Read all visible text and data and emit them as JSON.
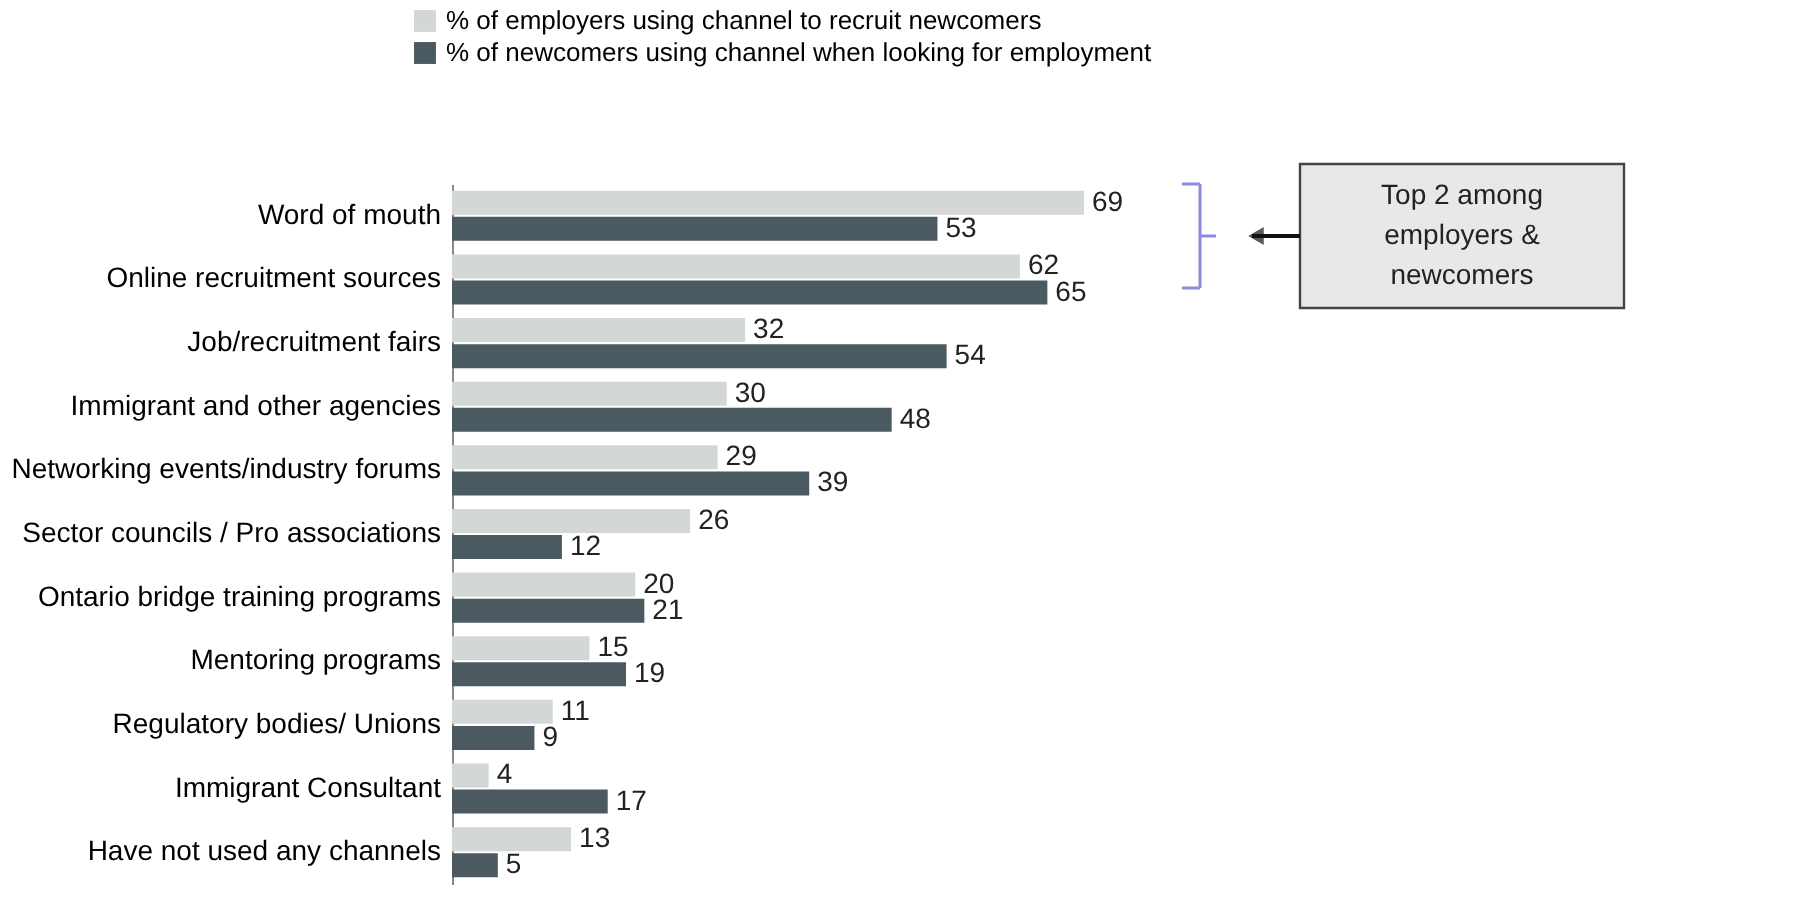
{
  "chart_data": {
    "type": "bar",
    "orientation": "horizontal",
    "data_labels": true,
    "legend": "top",
    "grid": false,
    "categories": [
      "Word of mouth",
      "Online recruitment sources",
      "Job/recruitment fairs",
      "Immigrant and other agencies",
      "Networking events/industry forums",
      "Sector councils / Pro associations",
      "Ontario bridge training programs",
      "Mentoring programs",
      "Regulatory bodies/ Unions",
      "Immigrant Consultant",
      "Have not used any channels"
    ],
    "series": [
      {
        "name": "% of employers using channel to recruit newcomers",
        "color": "#d3d8d6",
        "values": [
          69,
          62,
          32,
          30,
          29,
          26,
          20,
          15,
          11,
          4,
          13
        ]
      },
      {
        "name": "% of newcomers using channel when looking for employment",
        "color": "#4a5a60",
        "values": [
          53,
          65,
          54,
          48,
          39,
          12,
          21,
          19,
          9,
          17,
          5
        ]
      }
    ],
    "annotations": [
      "Top 2 among employers & newcomers"
    ]
  }
}
